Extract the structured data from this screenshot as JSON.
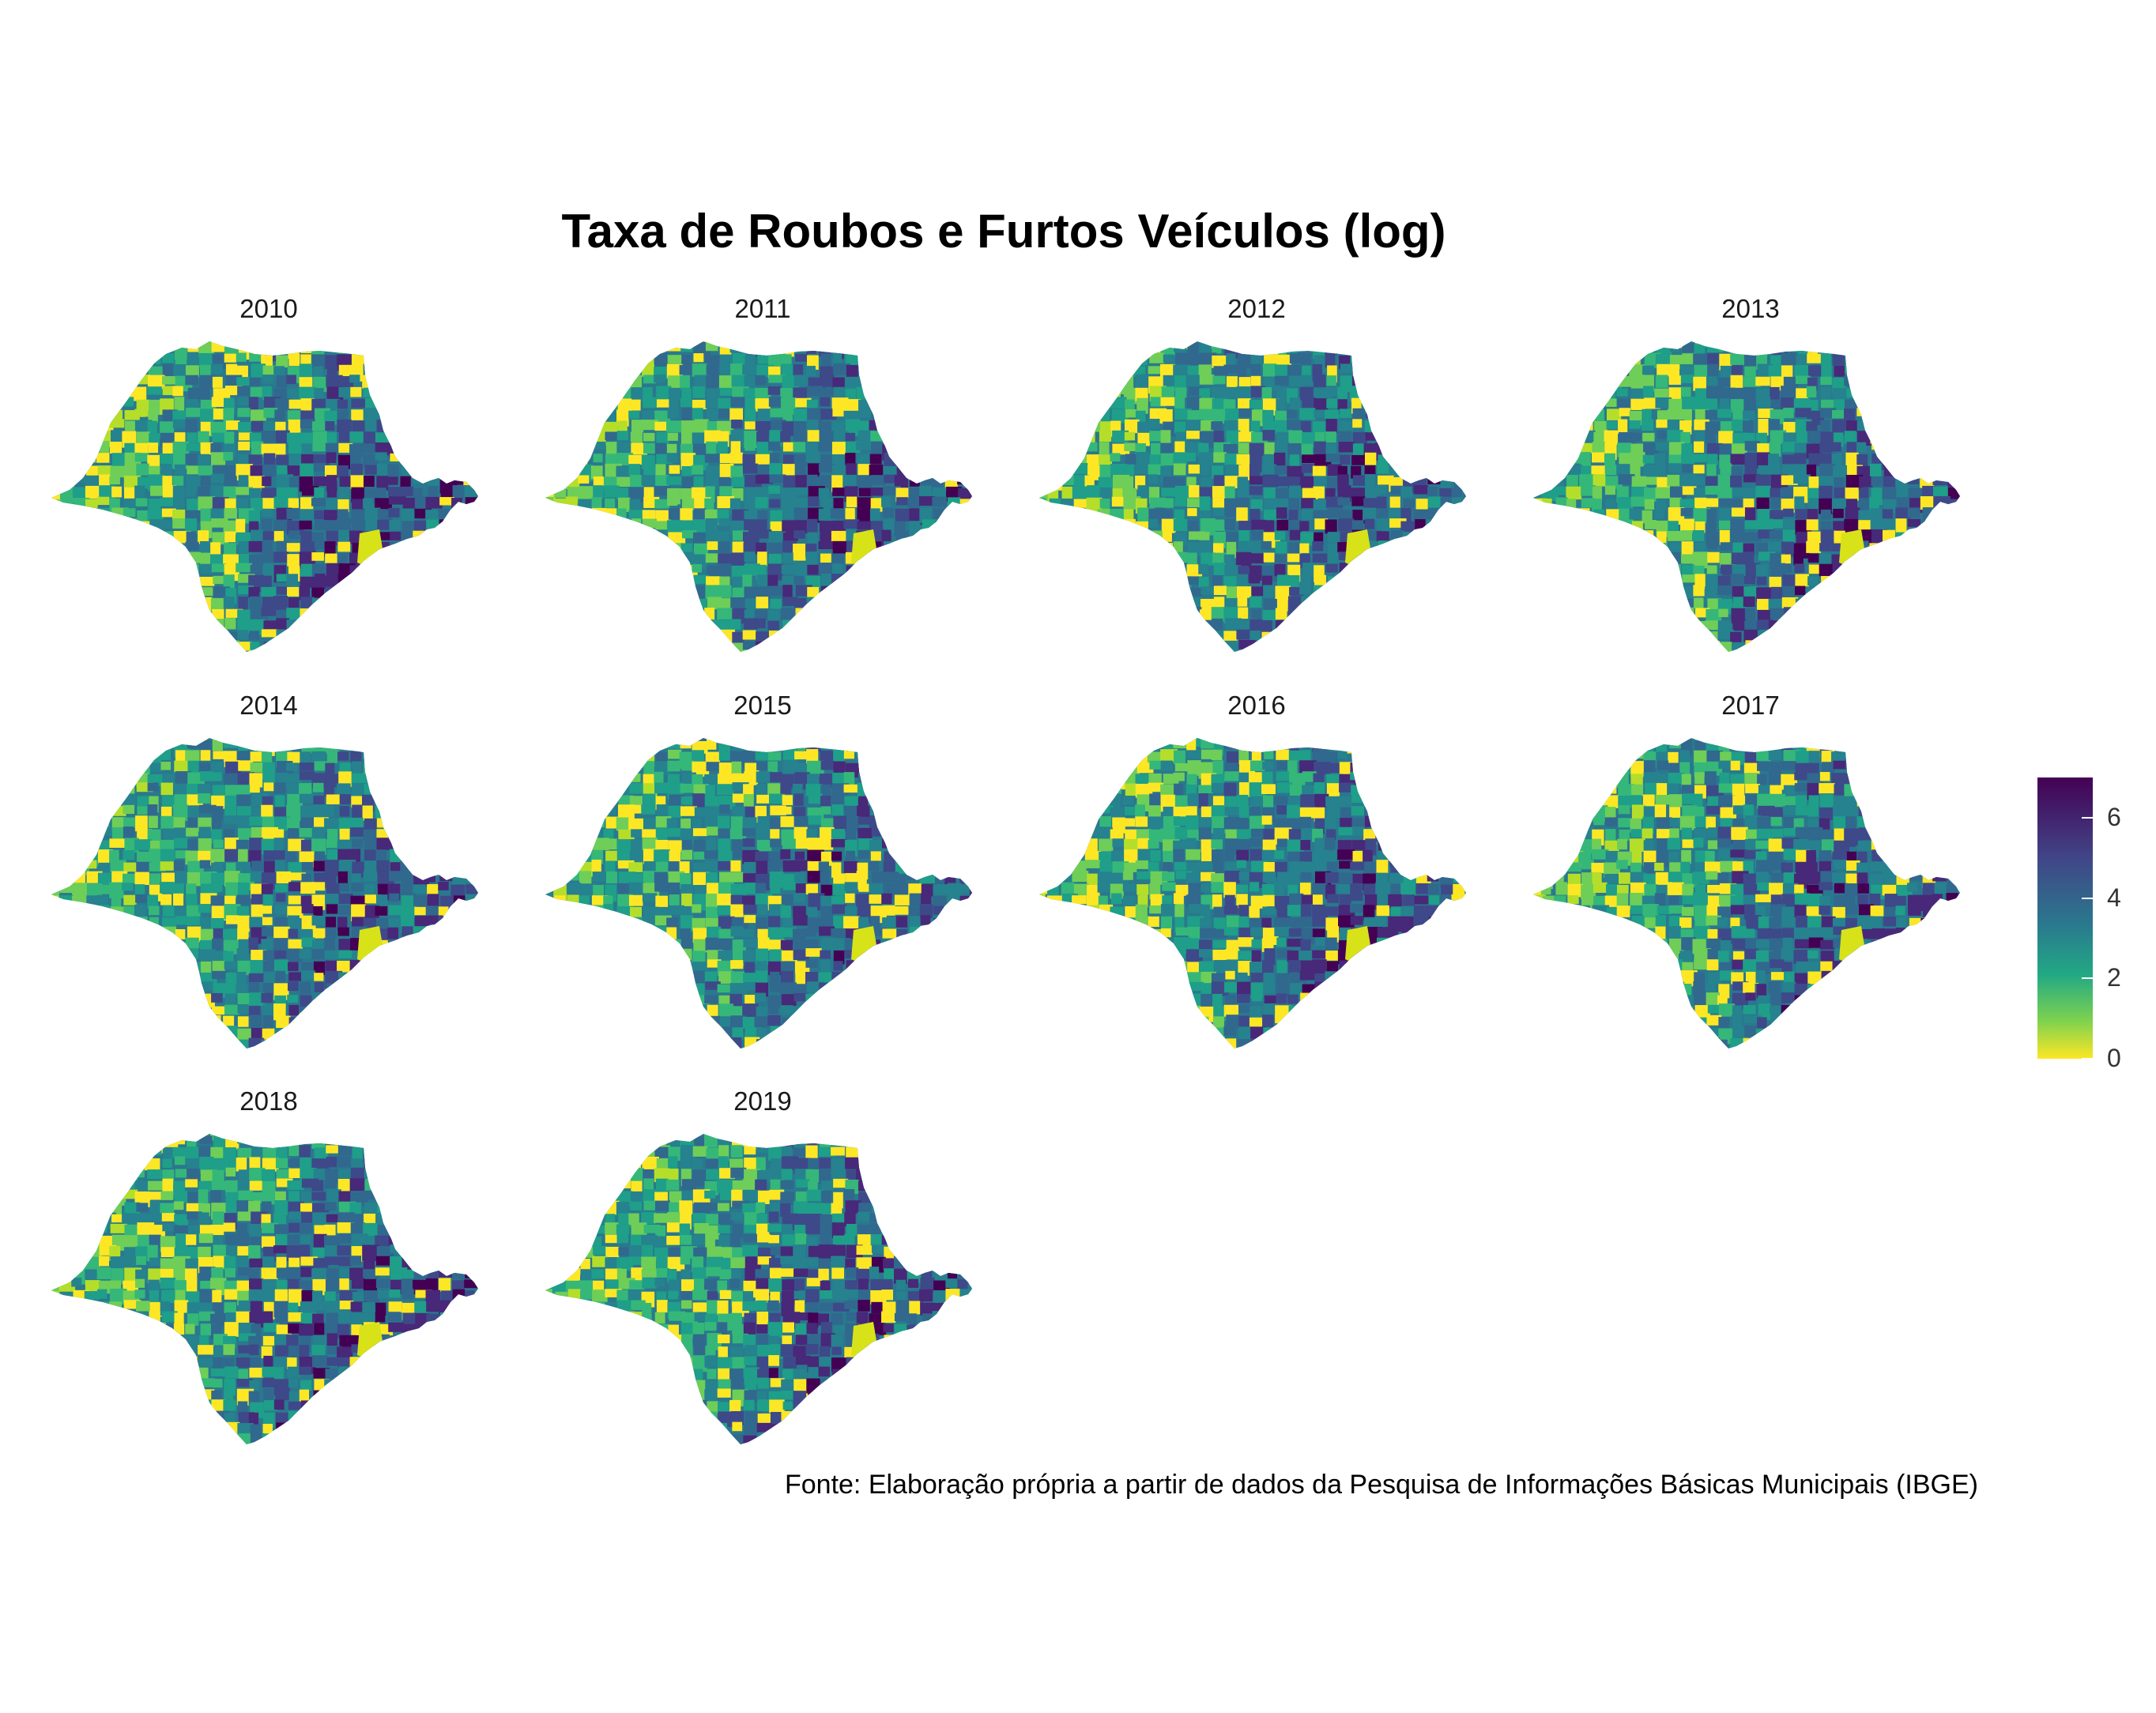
{
  "title": "Taxa de Roubos e Furtos Veículos (log)",
  "caption": "Fonte: Elaboração própria a partir de dados da Pesquisa de Informações Básicas Municipais (IBGE)",
  "facets": [
    "2010",
    "2011",
    "2012",
    "2013",
    "2014",
    "2015",
    "2016",
    "2017",
    "2018",
    "2019"
  ],
  "legend": {
    "ticks": [
      "0",
      "2",
      "4",
      "6"
    ],
    "tick_values": [
      0,
      2,
      4,
      6
    ],
    "range": [
      0,
      7
    ],
    "palette": [
      "#fde725",
      "#7ad151",
      "#22a884",
      "#2a788e",
      "#414487",
      "#440154"
    ]
  }
}
